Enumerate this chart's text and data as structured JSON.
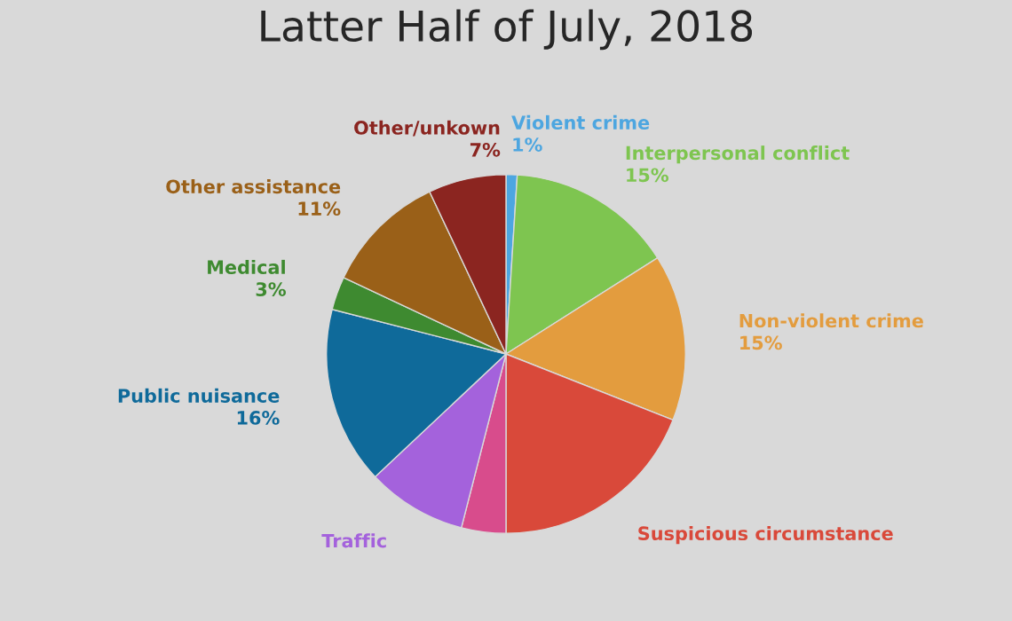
{
  "chart_data": {
    "type": "pie",
    "title": "Latter Half of July, 2018",
    "categories": [
      "Violent crime",
      "Interpersonal conflict",
      "Non-violent crime",
      "Suspicious circumstance",
      null,
      "Traffic",
      "Public nuisance",
      "Medical",
      "Other assistance",
      "Other/unkown"
    ],
    "values": [
      1,
      15,
      15,
      19,
      4,
      9,
      16,
      3,
      11,
      7
    ],
    "value_labels": [
      "1%",
      "15%",
      "15%",
      null,
      null,
      null,
      "16%",
      "3%",
      "11%",
      "7%"
    ],
    "colors": [
      "#4da6e0",
      "#7ec550",
      "#e39c3e",
      "#d9493a",
      "#d84c8c",
      "#a462dc",
      "#0f6a9a",
      "#3e8a30",
      "#9a6018",
      "#8b2520"
    ]
  }
}
